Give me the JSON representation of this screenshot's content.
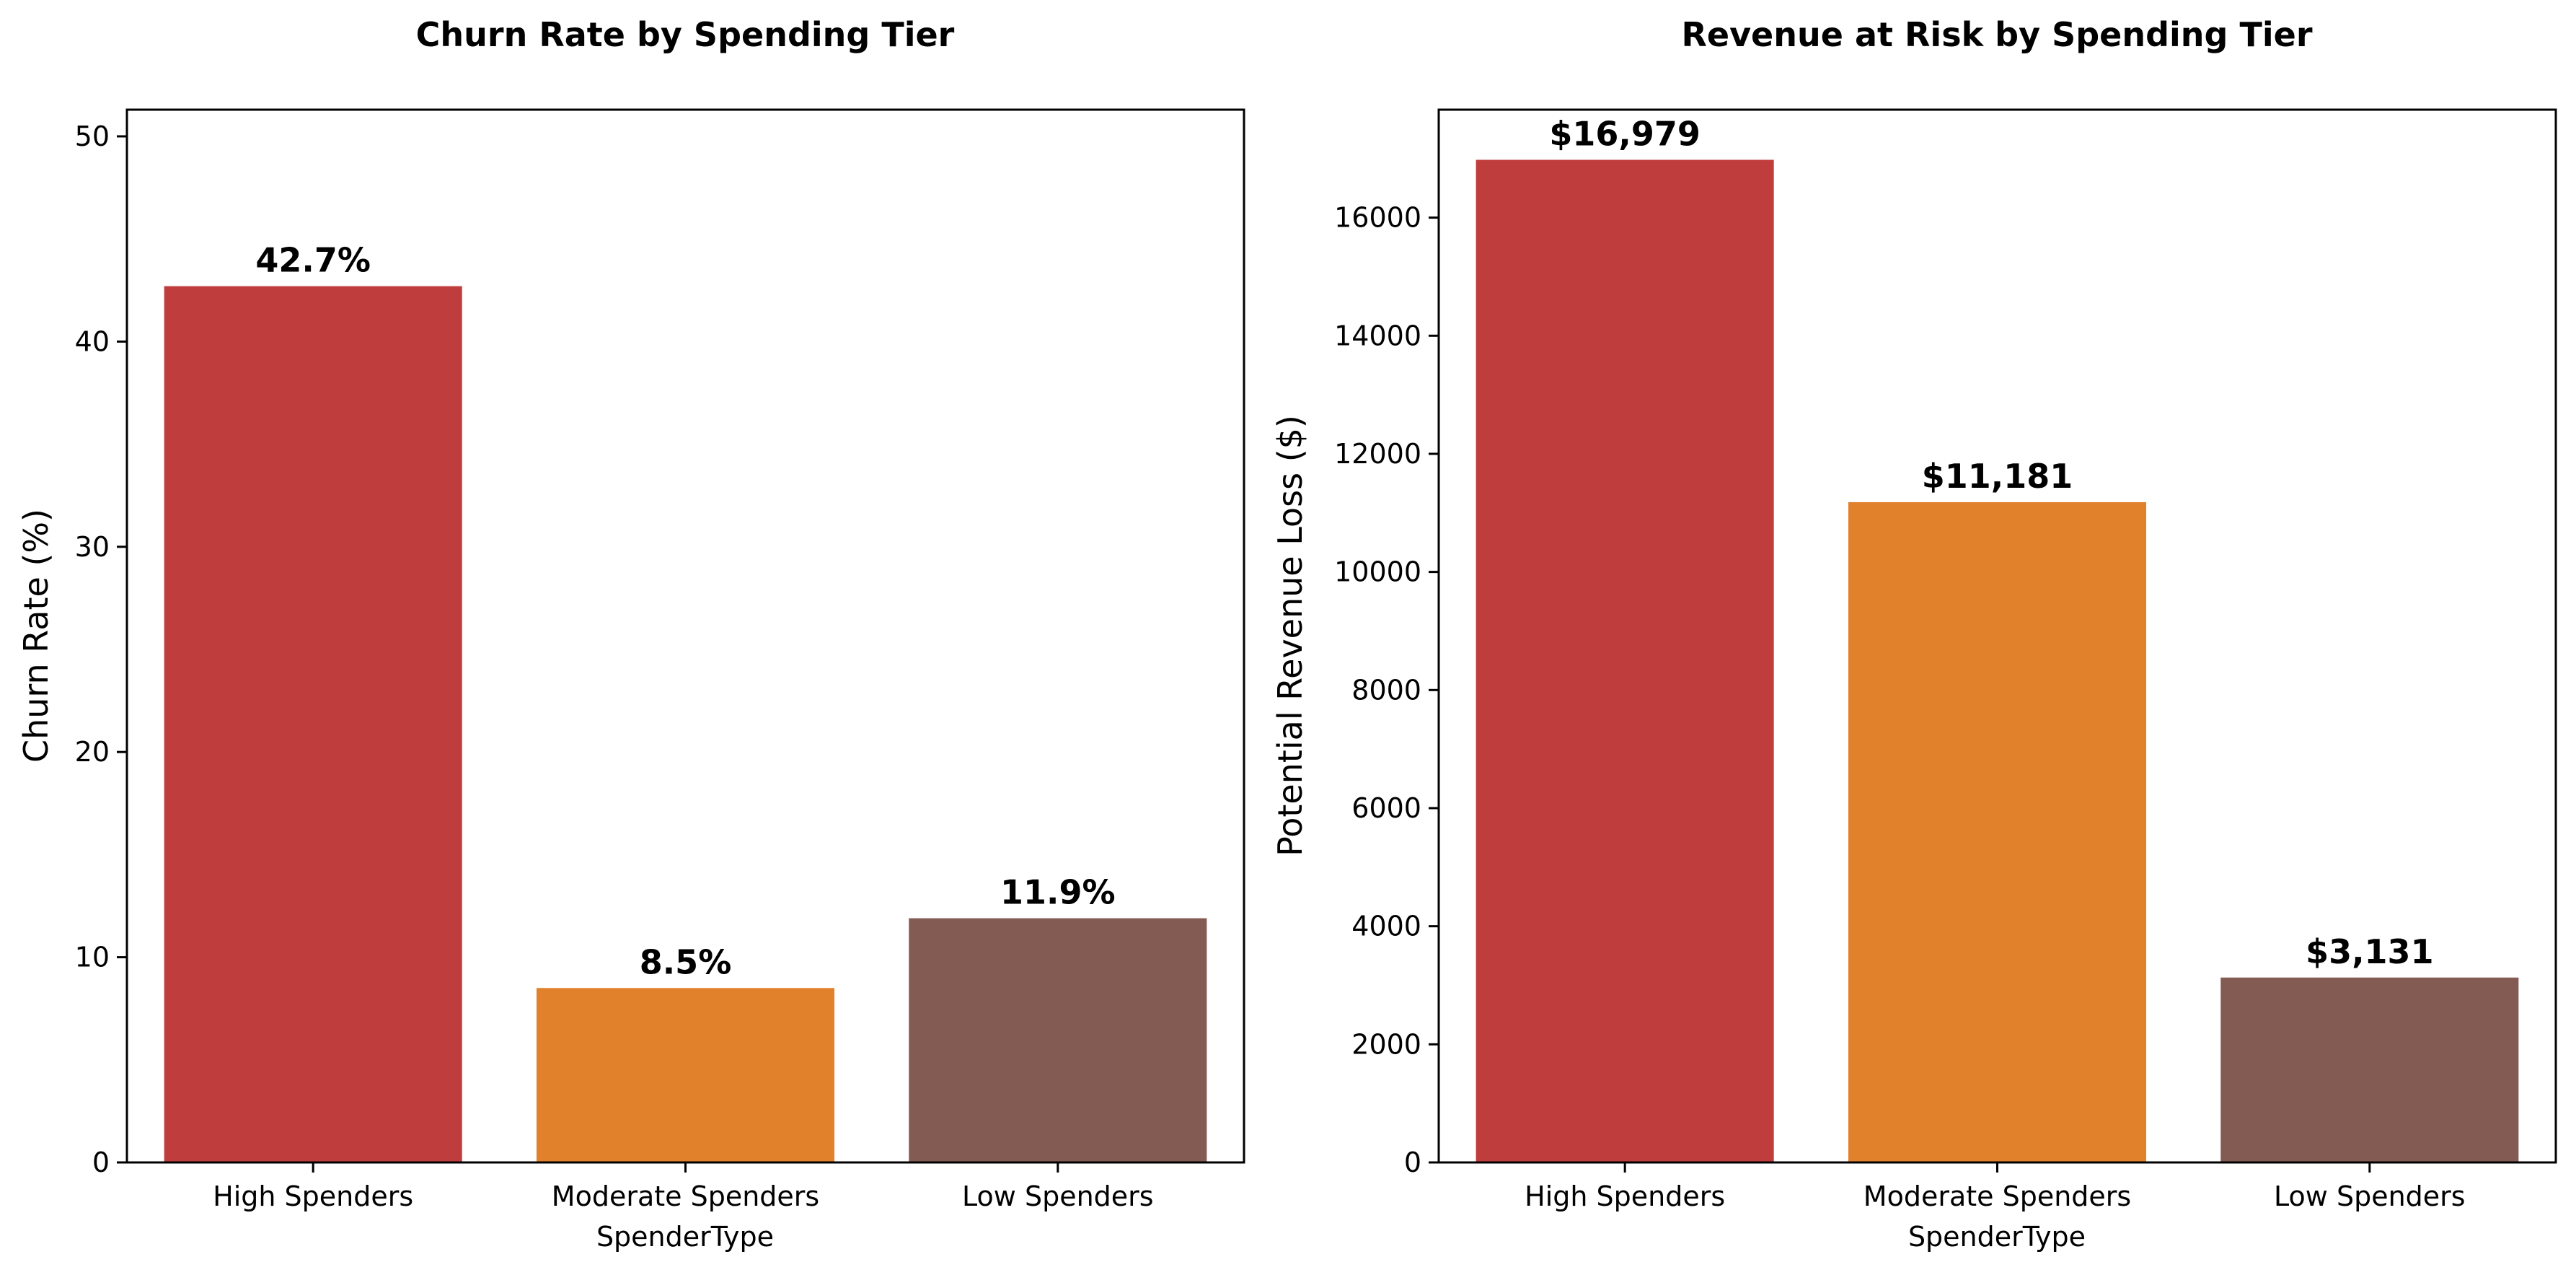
{
  "chart_data": [
    {
      "type": "bar",
      "title": "Churn Rate by Spending Tier",
      "xlabel": "SpenderType",
      "ylabel": "Churn Rate (%)",
      "categories": [
        "High Spenders",
        "Moderate Spenders",
        "Low Spenders"
      ],
      "values": [
        42.7,
        8.5,
        11.9
      ],
      "data_labels": [
        "42.7%",
        "8.5%",
        "11.9%"
      ],
      "colors": [
        "#c03d3e",
        "#e1812c",
        "#845b53"
      ],
      "ylim": [
        0,
        51.3
      ],
      "yticks": [
        0,
        10,
        20,
        30,
        40,
        50
      ],
      "ytick_labels": [
        "0",
        "10",
        "20",
        "30",
        "40",
        "50"
      ],
      "grid": false
    },
    {
      "type": "bar",
      "title": "Revenue at Risk by Spending Tier",
      "xlabel": "SpenderType",
      "ylabel": "Potential Revenue Loss ($)",
      "categories": [
        "High Spenders",
        "Moderate Spenders",
        "Low Spenders"
      ],
      "values": [
        16979,
        11181,
        3131
      ],
      "data_labels": [
        "$16,979",
        "$11,181",
        "$3,131"
      ],
      "colors": [
        "#c03d3e",
        "#e1812c",
        "#845b53"
      ],
      "ylim": [
        0,
        17828
      ],
      "yticks": [
        0,
        2000,
        4000,
        6000,
        8000,
        10000,
        12000,
        14000,
        16000
      ],
      "ytick_labels": [
        "0",
        "2000",
        "4000",
        "6000",
        "8000",
        "10000",
        "12000",
        "14000",
        "16000"
      ],
      "grid": false
    }
  ]
}
